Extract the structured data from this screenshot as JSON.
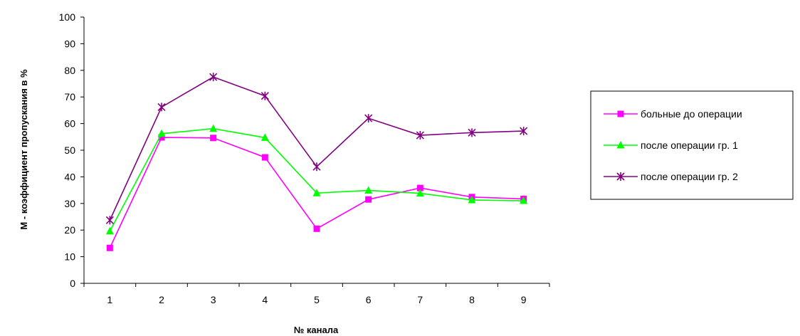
{
  "chart_data": {
    "type": "line",
    "categories": [
      "1",
      "2",
      "3",
      "4",
      "5",
      "6",
      "7",
      "8",
      "9"
    ],
    "xlabel": "№ канала",
    "ylabel": "М - коэффициент пропускания в %",
    "ylim": [
      0,
      100
    ],
    "yticks": [
      "0",
      "10",
      "20",
      "30",
      "40",
      "50",
      "60",
      "70",
      "80",
      "90",
      "100"
    ],
    "grid": false,
    "legend_position": "right",
    "series": [
      {
        "name": "больные до операции",
        "color": "#ff00ff",
        "marker": "square",
        "values": [
          13.3,
          54.8,
          54.6,
          47.3,
          20.5,
          31.5,
          35.8,
          32.4,
          31.7
        ]
      },
      {
        "name": "после операции гр. 1",
        "color": "#00ff00",
        "marker": "triangle",
        "values": [
          19.6,
          56.2,
          58.1,
          54.7,
          33.9,
          34.9,
          33.8,
          31.3,
          31.0
        ]
      },
      {
        "name": "после операции гр. 2",
        "color": "#800080",
        "marker": "asterisk",
        "values": [
          23.7,
          66.2,
          77.5,
          70.4,
          43.8,
          62.0,
          55.6,
          56.6,
          57.2
        ]
      }
    ]
  }
}
